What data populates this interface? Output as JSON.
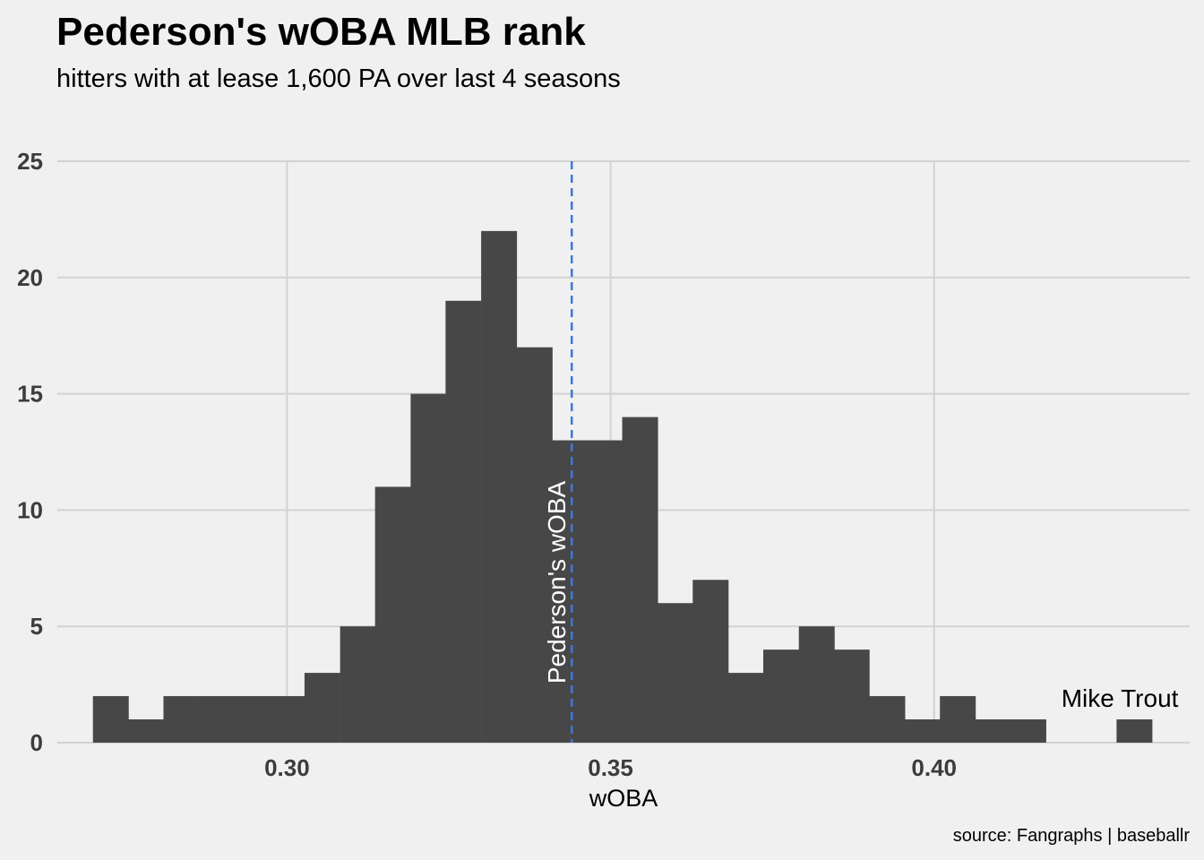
{
  "chart_data": {
    "type": "bar",
    "title": "Pederson's wOBA MLB rank",
    "subtitle": "hitters with at lease 1,600 PA over last 4 seasons",
    "xlabel": "wOBA",
    "ylabel": "",
    "xlim": [
      0.2645,
      0.4395
    ],
    "ylim": [
      0,
      25
    ],
    "x_ticks": [
      0.3,
      0.35,
      0.4
    ],
    "x_tick_labels": [
      "0.30",
      "0.35",
      "0.40"
    ],
    "y_ticks": [
      0,
      5,
      10,
      15,
      20,
      25
    ],
    "y_tick_labels": [
      "0",
      "5",
      "10",
      "15",
      "20",
      "25"
    ],
    "bin_width": 0.005454,
    "bins": [
      {
        "x0": 0.27,
        "count": 2
      },
      {
        "x0": 0.2755,
        "count": 1
      },
      {
        "x0": 0.2809,
        "count": 2
      },
      {
        "x0": 0.2864,
        "count": 2
      },
      {
        "x0": 0.2918,
        "count": 2
      },
      {
        "x0": 0.2973,
        "count": 2
      },
      {
        "x0": 0.3027,
        "count": 3
      },
      {
        "x0": 0.3082,
        "count": 5
      },
      {
        "x0": 0.3136,
        "count": 11
      },
      {
        "x0": 0.3191,
        "count": 15
      },
      {
        "x0": 0.3245,
        "count": 19
      },
      {
        "x0": 0.33,
        "count": 22
      },
      {
        "x0": 0.3355,
        "count": 17
      },
      {
        "x0": 0.3409,
        "count": 13
      },
      {
        "x0": 0.3464,
        "count": 13
      },
      {
        "x0": 0.3518,
        "count": 14
      },
      {
        "x0": 0.3573,
        "count": 6
      },
      {
        "x0": 0.3627,
        "count": 7
      },
      {
        "x0": 0.3682,
        "count": 3
      },
      {
        "x0": 0.3736,
        "count": 4
      },
      {
        "x0": 0.3791,
        "count": 5
      },
      {
        "x0": 0.3845,
        "count": 4
      },
      {
        "x0": 0.39,
        "count": 2
      },
      {
        "x0": 0.3955,
        "count": 1
      },
      {
        "x0": 0.4009,
        "count": 2
      },
      {
        "x0": 0.4064,
        "count": 1
      },
      {
        "x0": 0.4118,
        "count": 1
      },
      {
        "x0": 0.4173,
        "count": 0
      },
      {
        "x0": 0.4227,
        "count": 0
      },
      {
        "x0": 0.4282,
        "count": 1
      }
    ],
    "reference_line": {
      "x": 0.344,
      "label": "Pederson's wOBA",
      "color": "#3a78e0",
      "style": "dashed"
    },
    "annotations": [
      {
        "label": "Mike Trout",
        "x": 0.4282,
        "y": 1
      }
    ],
    "bar_color": "#474747",
    "grid": true,
    "legend": "none"
  },
  "caption": "source: Fangraphs | baseballr"
}
